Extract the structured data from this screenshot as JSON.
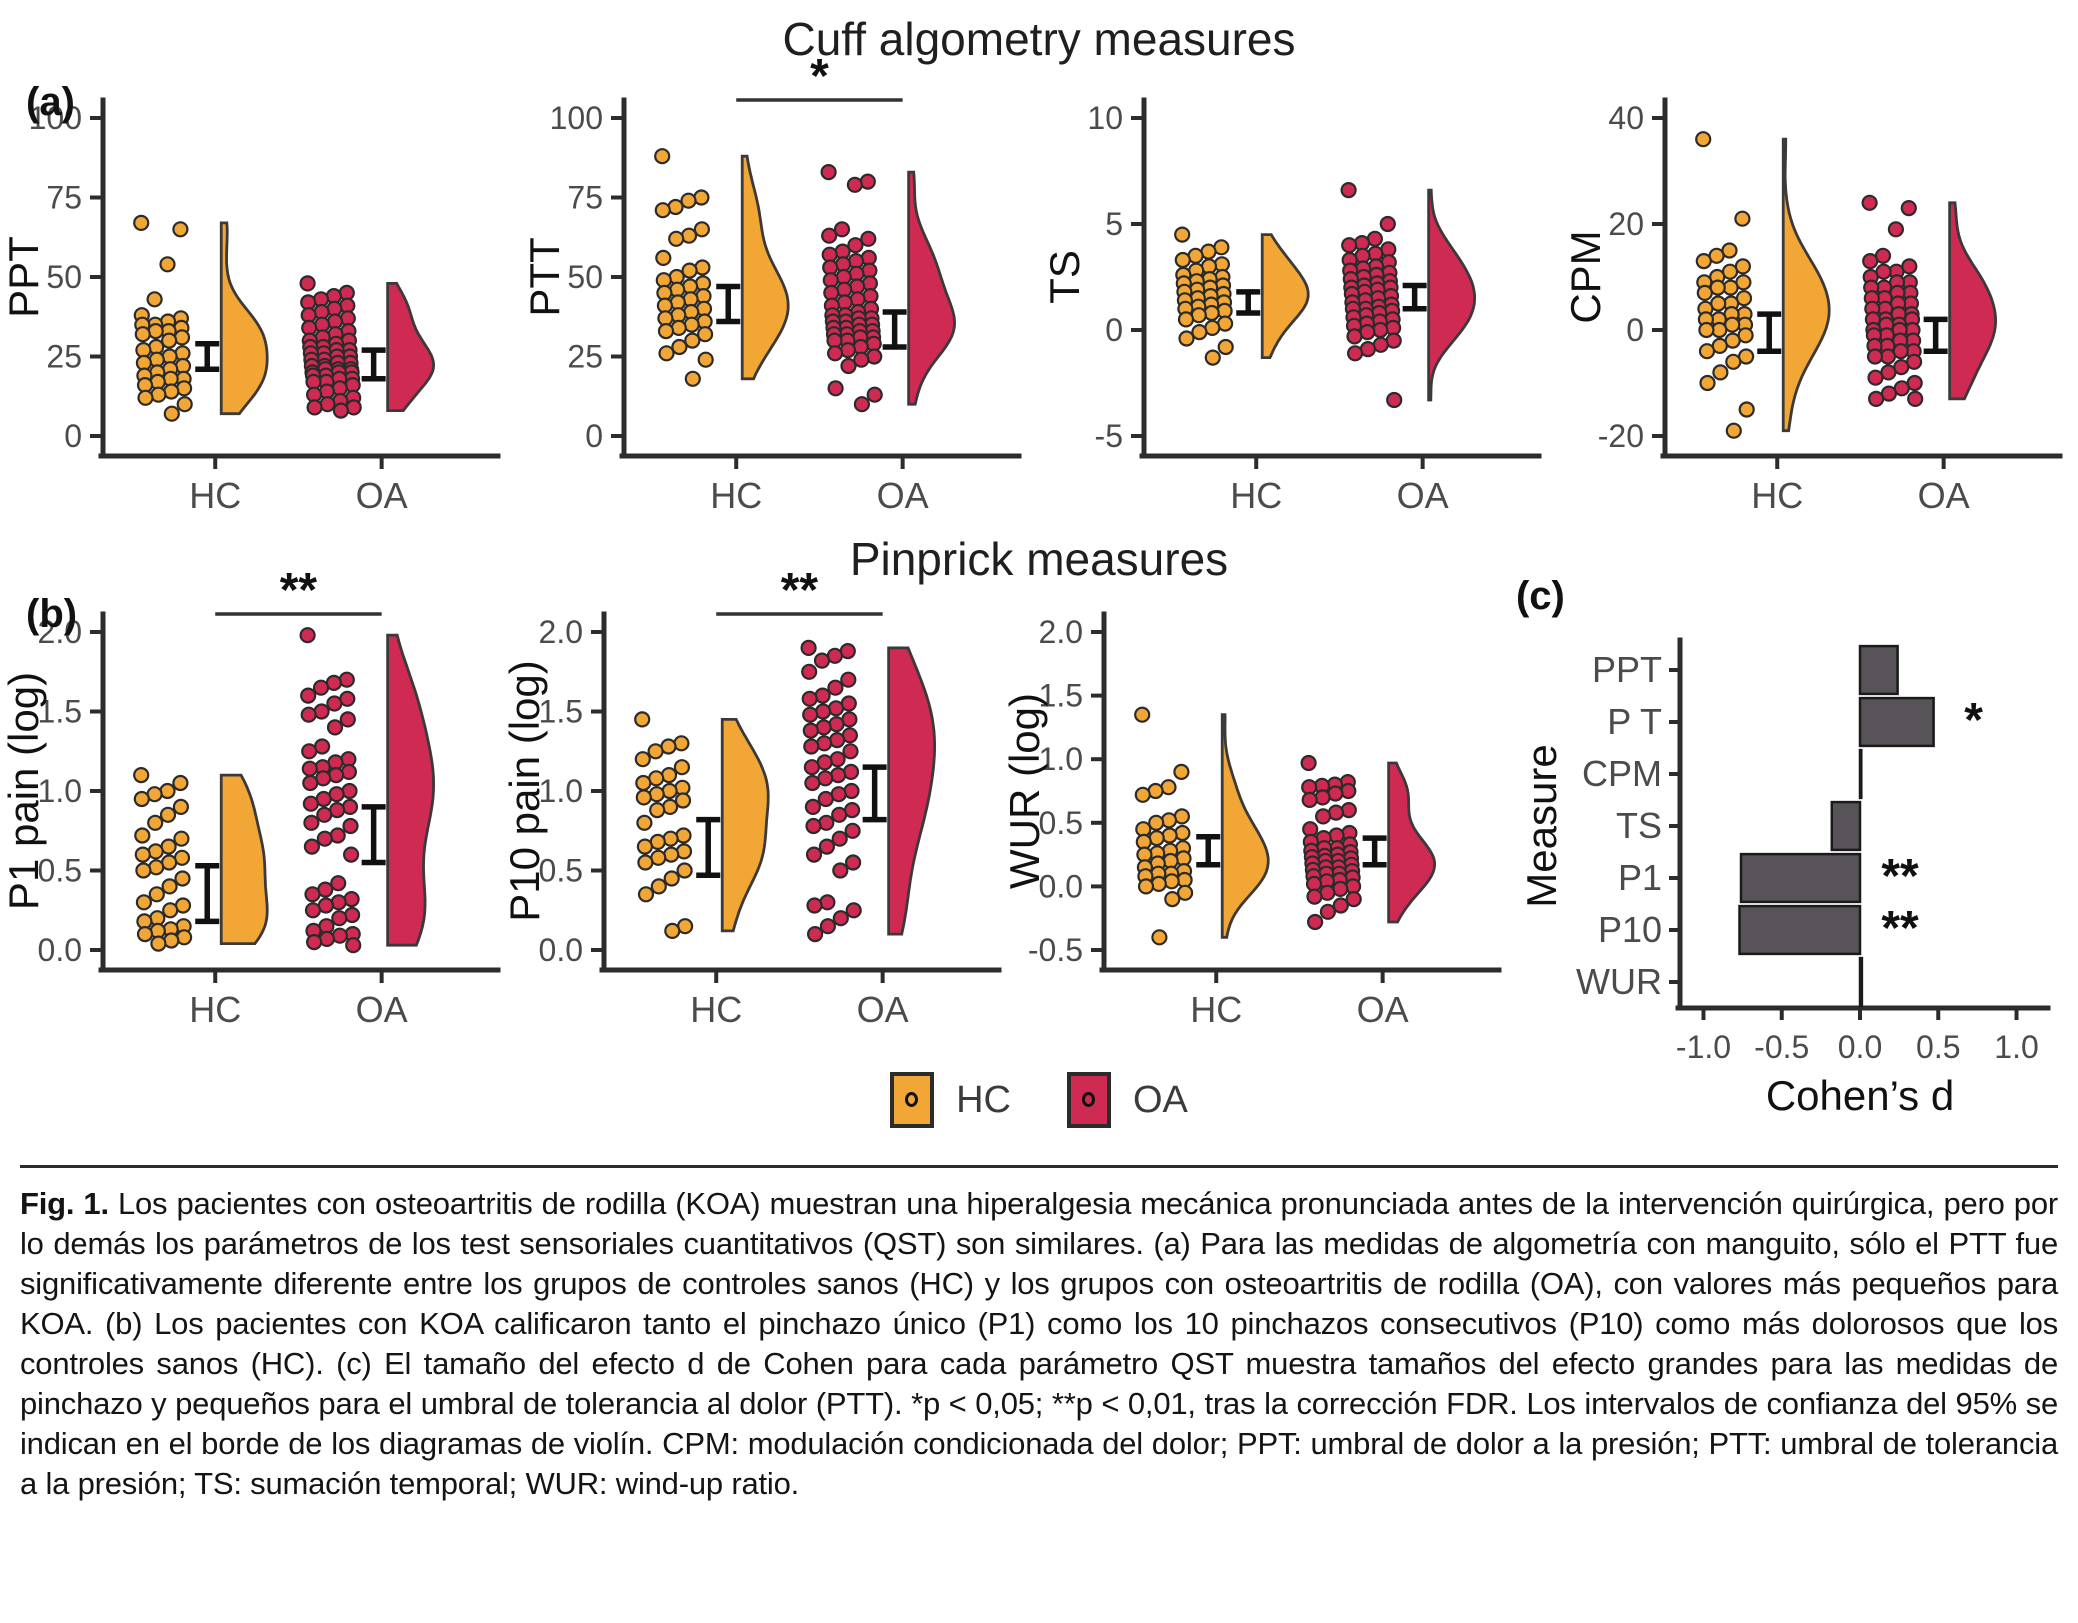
{
  "titles": {
    "cuff": "Cuff algometry measures",
    "pinprick": "Pinprick measures"
  },
  "panel_labels": {
    "a": "(a)",
    "b": "(b)",
    "c": "(c)"
  },
  "colors": {
    "hc": "#F2A636",
    "oa": "#CF2A51",
    "bar": "#585358",
    "axis": "#2E2B2E",
    "tick_text": "#4D4A4D"
  },
  "legend": {
    "items": [
      {
        "label": "HC",
        "color": "#F2A636"
      },
      {
        "label": "OA",
        "color": "#CF2A51"
      }
    ]
  },
  "chart_data": [
    {
      "type": "raincloud",
      "ylabel": "PPT",
      "ylim": [
        0,
        100
      ],
      "yticks": [
        0,
        25,
        50,
        75,
        100
      ],
      "ytick_labels": [
        "0",
        "25",
        "50",
        "75",
        "100"
      ],
      "categories": [
        "HC",
        "OA"
      ],
      "significance": null,
      "series": [
        {
          "name": "HC",
          "ci": [
            21,
            29
          ],
          "values": [
            67,
            65,
            54,
            43,
            38,
            37,
            36,
            35,
            35,
            34,
            33,
            33,
            32,
            31,
            30,
            28,
            27,
            26,
            25,
            24,
            23,
            22,
            21,
            20,
            19,
            18,
            18,
            17,
            16,
            15,
            14,
            13,
            12,
            10,
            7
          ]
        },
        {
          "name": "OA",
          "ci": [
            18,
            27
          ],
          "values": [
            48,
            45,
            44,
            43,
            42,
            41,
            40,
            39,
            38,
            37,
            36,
            35,
            34,
            33,
            32,
            31,
            30,
            30,
            29,
            28,
            28,
            27,
            27,
            26,
            26,
            25,
            25,
            24,
            24,
            23,
            23,
            22,
            22,
            21,
            21,
            21,
            20,
            20,
            20,
            19,
            19,
            18,
            18,
            17,
            17,
            16,
            15,
            14,
            13,
            12,
            11,
            10,
            9,
            9,
            8
          ]
        }
      ]
    },
    {
      "type": "raincloud",
      "ylabel": "PTT",
      "ylim": [
        0,
        100
      ],
      "yticks": [
        0,
        25,
        50,
        75,
        100
      ],
      "ytick_labels": [
        "0",
        "25",
        "50",
        "75",
        "100"
      ],
      "categories": [
        "HC",
        "OA"
      ],
      "significance": "*",
      "series": [
        {
          "name": "HC",
          "ci": [
            36,
            47
          ],
          "values": [
            88,
            75,
            74,
            72,
            71,
            65,
            63,
            62,
            56,
            53,
            52,
            50,
            49,
            48,
            47,
            46,
            45,
            44,
            43,
            42,
            41,
            40,
            39,
            38,
            37,
            36,
            35,
            34,
            33,
            32,
            30,
            28,
            26,
            24,
            18
          ]
        },
        {
          "name": "OA",
          "ci": [
            28,
            39
          ],
          "values": [
            83,
            80,
            79,
            65,
            63,
            62,
            60,
            58,
            57,
            56,
            55,
            54,
            53,
            52,
            51,
            50,
            49,
            48,
            47,
            46,
            45,
            44,
            43,
            42,
            41,
            40,
            39,
            38,
            38,
            37,
            37,
            36,
            36,
            35,
            35,
            34,
            34,
            33,
            33,
            32,
            32,
            31,
            31,
            30,
            30,
            29,
            28,
            27,
            26,
            25,
            24,
            22,
            15,
            13,
            10
          ]
        }
      ]
    },
    {
      "type": "raincloud",
      "ylabel": "TS",
      "ylim": [
        -5,
        10
      ],
      "yticks": [
        -5,
        0,
        5,
        10
      ],
      "ytick_labels": [
        "-5",
        "0",
        "5",
        "10"
      ],
      "categories": [
        "HC",
        "OA"
      ],
      "significance": null,
      "series": [
        {
          "name": "HC",
          "ci": [
            0.8,
            1.8
          ],
          "values": [
            4.5,
            3.9,
            3.7,
            3.5,
            3.3,
            3.1,
            3.0,
            2.8,
            2.6,
            2.5,
            2.4,
            2.3,
            2.2,
            2.1,
            2.0,
            1.9,
            1.8,
            1.7,
            1.6,
            1.5,
            1.4,
            1.3,
            1.2,
            1.1,
            1.0,
            0.9,
            0.8,
            0.7,
            0.5,
            0.3,
            0.1,
            -0.1,
            -0.4,
            -0.8,
            -1.3
          ]
        },
        {
          "name": "OA",
          "ci": [
            1.0,
            2.1
          ],
          "values": [
            6.6,
            5.0,
            4.3,
            4.1,
            4.0,
            3.8,
            3.6,
            3.5,
            3.3,
            3.2,
            3.0,
            2.9,
            2.8,
            2.7,
            2.6,
            2.5,
            2.4,
            2.3,
            2.2,
            2.1,
            2.0,
            2.0,
            1.9,
            1.8,
            1.7,
            1.6,
            1.5,
            1.4,
            1.3,
            1.2,
            1.1,
            1.0,
            1.0,
            0.9,
            0.8,
            0.7,
            0.6,
            0.5,
            0.4,
            0.3,
            0.2,
            0.1,
            0.0,
            -0.1,
            -0.3,
            -0.5,
            -0.7,
            -0.9,
            -1.1,
            -3.3
          ]
        }
      ]
    },
    {
      "type": "raincloud",
      "ylabel": "CPM",
      "ylim": [
        -20,
        40
      ],
      "yticks": [
        -20,
        0,
        20,
        40
      ],
      "ytick_labels": [
        "-20",
        "0",
        "20",
        "40"
      ],
      "categories": [
        "HC",
        "OA"
      ],
      "significance": null,
      "series": [
        {
          "name": "HC",
          "ci": [
            -4,
            3
          ],
          "values": [
            36,
            21,
            15,
            14,
            13,
            12,
            11,
            10,
            9,
            9,
            8,
            8,
            7,
            6,
            5,
            5,
            4,
            3,
            3,
            2,
            2,
            1,
            1,
            0,
            0,
            -1,
            -2,
            -3,
            -4,
            -5,
            -6,
            -8,
            -10,
            -15,
            -19
          ]
        },
        {
          "name": "OA",
          "ci": [
            -4,
            2
          ],
          "values": [
            24,
            23,
            19,
            14,
            13,
            12,
            11,
            11,
            10,
            9,
            9,
            8,
            8,
            7,
            7,
            6,
            6,
            5,
            5,
            4,
            4,
            3,
            3,
            2,
            2,
            2,
            1,
            1,
            0,
            0,
            0,
            -1,
            -1,
            -2,
            -2,
            -3,
            -3,
            -4,
            -4,
            -5,
            -5,
            -6,
            -7,
            -8,
            -9,
            -10,
            -11,
            -12,
            -13,
            -13
          ]
        }
      ]
    },
    {
      "type": "raincloud",
      "ylabel": "P1 pain (log)",
      "ylim": [
        0,
        2.0
      ],
      "yticks": [
        0,
        0.5,
        1.0,
        1.5,
        2.0
      ],
      "ytick_labels": [
        "0.0",
        "0.5",
        "1.0",
        "1.5",
        "2.0"
      ],
      "categories": [
        "HC",
        "OA"
      ],
      "significance": "**",
      "series": [
        {
          "name": "HC",
          "ci": [
            0.18,
            0.53
          ],
          "values": [
            1.1,
            1.05,
            1.0,
            0.98,
            0.95,
            0.9,
            0.85,
            0.8,
            0.72,
            0.7,
            0.65,
            0.62,
            0.6,
            0.58,
            0.55,
            0.52,
            0.5,
            0.45,
            0.4,
            0.35,
            0.3,
            0.28,
            0.25,
            0.2,
            0.18,
            0.15,
            0.13,
            0.12,
            0.1,
            0.08,
            0.06,
            0.04
          ]
        },
        {
          "name": "OA",
          "ci": [
            0.55,
            0.9
          ],
          "values": [
            1.98,
            1.7,
            1.68,
            1.65,
            1.6,
            1.58,
            1.55,
            1.5,
            1.48,
            1.45,
            1.4,
            1.28,
            1.25,
            1.2,
            1.18,
            1.15,
            1.14,
            1.12,
            1.1,
            1.08,
            1.05,
            1.0,
            0.98,
            0.95,
            0.92,
            0.9,
            0.88,
            0.85,
            0.8,
            0.78,
            0.72,
            0.7,
            0.65,
            0.6,
            0.42,
            0.38,
            0.35,
            0.32,
            0.3,
            0.28,
            0.25,
            0.22,
            0.2,
            0.15,
            0.12,
            0.1,
            0.09,
            0.07,
            0.05,
            0.03
          ]
        }
      ]
    },
    {
      "type": "raincloud",
      "ylabel": "P10 pain (log)",
      "ylim": [
        0,
        2.0
      ],
      "yticks": [
        0,
        0.5,
        1.0,
        1.5,
        2.0
      ],
      "ytick_labels": [
        "0.0",
        "0.5",
        "1.0",
        "1.5",
        "2.0"
      ],
      "categories": [
        "HC",
        "OA"
      ],
      "significance": "**",
      "series": [
        {
          "name": "HC",
          "ci": [
            0.47,
            0.82
          ],
          "values": [
            1.45,
            1.3,
            1.28,
            1.25,
            1.2,
            1.15,
            1.1,
            1.08,
            1.05,
            1.02,
            1.0,
            0.98,
            0.96,
            0.94,
            0.9,
            0.88,
            0.8,
            0.72,
            0.7,
            0.68,
            0.65,
            0.62,
            0.6,
            0.58,
            0.55,
            0.5,
            0.45,
            0.4,
            0.35,
            0.15,
            0.12
          ]
        },
        {
          "name": "OA",
          "ci": [
            0.82,
            1.15
          ],
          "values": [
            1.9,
            1.88,
            1.85,
            1.82,
            1.75,
            1.7,
            1.65,
            1.6,
            1.58,
            1.55,
            1.52,
            1.5,
            1.48,
            1.45,
            1.42,
            1.4,
            1.38,
            1.35,
            1.32,
            1.3,
            1.28,
            1.25,
            1.2,
            1.18,
            1.15,
            1.12,
            1.1,
            1.08,
            1.05,
            1.0,
            0.98,
            0.95,
            0.9,
            0.88,
            0.85,
            0.8,
            0.78,
            0.75,
            0.7,
            0.65,
            0.6,
            0.55,
            0.5,
            0.3,
            0.28,
            0.25,
            0.2,
            0.15,
            0.1
          ]
        }
      ]
    },
    {
      "type": "raincloud",
      "ylabel": "WUR (log)",
      "ylim": [
        -0.5,
        2.0
      ],
      "yticks": [
        -0.5,
        0,
        0.5,
        1.0,
        1.5,
        2.0
      ],
      "ytick_labels": [
        "-0.5",
        "0.0",
        "0.5",
        "1.0",
        "1.5",
        "2.0"
      ],
      "categories": [
        "HC",
        "OA"
      ],
      "significance": null,
      "series": [
        {
          "name": "HC",
          "ci": [
            0.17,
            0.39
          ],
          "values": [
            1.35,
            0.9,
            0.78,
            0.75,
            0.72,
            0.55,
            0.52,
            0.5,
            0.45,
            0.42,
            0.4,
            0.38,
            0.35,
            0.3,
            0.28,
            0.26,
            0.25,
            0.22,
            0.2,
            0.18,
            0.15,
            0.12,
            0.1,
            0.1,
            0.08,
            0.05,
            0.04,
            0.02,
            0.0,
            -0.05,
            -0.1,
            -0.4
          ]
        },
        {
          "name": "OA",
          "ci": [
            0.17,
            0.38
          ],
          "values": [
            0.97,
            0.82,
            0.8,
            0.79,
            0.78,
            0.75,
            0.73,
            0.7,
            0.68,
            0.6,
            0.58,
            0.55,
            0.45,
            0.42,
            0.4,
            0.38,
            0.35,
            0.33,
            0.3,
            0.3,
            0.28,
            0.27,
            0.25,
            0.24,
            0.23,
            0.22,
            0.2,
            0.2,
            0.18,
            0.17,
            0.15,
            0.15,
            0.13,
            0.12,
            0.1,
            0.1,
            0.08,
            0.07,
            0.05,
            0.04,
            0.02,
            0.0,
            -0.02,
            -0.05,
            -0.08,
            -0.1,
            -0.15,
            -0.2,
            -0.28
          ]
        }
      ]
    },
    {
      "type": "bar-horizontal",
      "categories": [
        "PPT",
        "P T",
        "CPM",
        "TS",
        "P1",
        "P10",
        "WUR"
      ],
      "values": [
        0.24,
        0.47,
        0.008,
        -0.18,
        -0.76,
        -0.77,
        0.012
      ],
      "annotations": [
        "",
        "*",
        "",
        "",
        "**",
        "**",
        ""
      ],
      "xlabel": "Cohen’s d",
      "ylabel": "Measure",
      "xlim": [
        -1.15,
        1.15
      ],
      "xticks": [
        -1.0,
        -0.5,
        0.0,
        0.5,
        1.0
      ],
      "xtick_labels": [
        "-1.0",
        "-0.5",
        "0.0",
        "0.5",
        "1.0"
      ]
    }
  ],
  "caption": {
    "prefix": "Fig. 1.",
    "text": "Los pacientes con osteoartritis de rodilla (KOA) muestran una hiperalgesia mecánica pronunciada antes de la intervención quirúrgica, pero por lo demás los parámetros de los test sensoriales cuantitativos (QST) son similares. (a) Para las medidas de algometría con manguito, sólo el PTT fue significativamente diferente entre los grupos de controles sanos (HC) y los grupos con osteoartritis de rodilla (OA), con valores más pequeños para KOA. (b) Los pacientes con KOA calificaron tanto el pinchazo único (P1) como los 10 pinchazos consecutivos (P10) como más dolorosos que los controles sanos (HC). (c) El tamaño del efecto d de Cohen para cada parámetro QST muestra tamaños del efecto grandes para las medidas de pinchazo y pequeños para el umbral de tolerancia al dolor (PTT). *p < 0,05; **p < 0,01, tras la corrección FDR. Los intervalos de confianza del 95% se indican en el borde de los diagramas de violín. CPM: modulación condicionada del dolor; PPT: umbral de dolor a la presión; PTT: umbral de tolerancia a la presión; TS: sumación temporal; WUR: wind-up ratio."
  }
}
